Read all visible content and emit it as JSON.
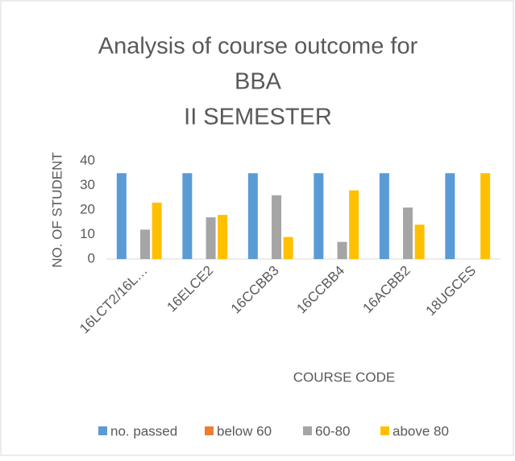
{
  "chart_data": {
    "type": "bar",
    "title": [
      "Analysis of course outcome for",
      "BBA",
      "II SEMESTER"
    ],
    "x_label": "COURSE CODE",
    "y_label": "NO. OF STUDENT",
    "categories": [
      "16LCT2/16L…",
      "16ELCE2",
      "16CCBB3",
      "16CCBB4",
      "16ACBB2",
      "18UGCES"
    ],
    "series": [
      {
        "name": "no. passed",
        "color": "#5b9bd5",
        "values": [
          35,
          35,
          35,
          35,
          35,
          35
        ]
      },
      {
        "name": "below 60",
        "color": "#ed7d31",
        "values": [
          0,
          0,
          0,
          0,
          0,
          0
        ]
      },
      {
        "name": "60-80",
        "color": "#a5a5a5",
        "values": [
          12,
          17,
          26,
          7,
          21,
          0
        ]
      },
      {
        "name": "above 80",
        "color": "#ffc000",
        "values": [
          23,
          18,
          9,
          28,
          14,
          35
        ]
      }
    ],
    "ylim": [
      0,
      40
    ],
    "yticks": [
      0,
      10,
      20,
      30,
      40
    ],
    "grid": false,
    "legend": "bottom"
  }
}
